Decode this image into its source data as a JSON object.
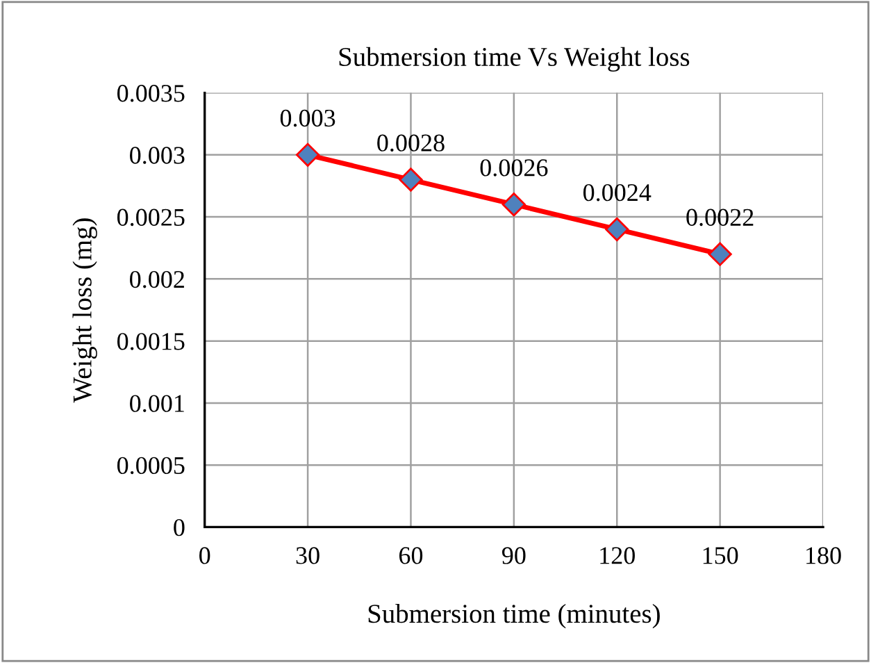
{
  "chart_data": {
    "type": "line",
    "title": "Submersion time Vs Weight loss",
    "xlabel": "Submersion time (minutes)",
    "ylabel": "Weight loss (mg)",
    "x": [
      30,
      60,
      90,
      120,
      150
    ],
    "series": [
      {
        "color": "#ff0000",
        "values": [
          0.003,
          0.0028,
          0.0026,
          0.0024,
          0.0022
        ]
      }
    ],
    "xlim": [
      0,
      180
    ],
    "xticks": [
      0,
      30,
      60,
      90,
      120,
      150,
      180
    ],
    "ylim": [
      0,
      0.0035
    ],
    "yticks": [
      0,
      0.0005,
      0.001,
      0.0015,
      0.002,
      0.0025,
      0.003,
      0.0035
    ],
    "grid": true,
    "marker": "diamond",
    "line_style": "solid",
    "data_labels": true,
    "legend": false
  }
}
